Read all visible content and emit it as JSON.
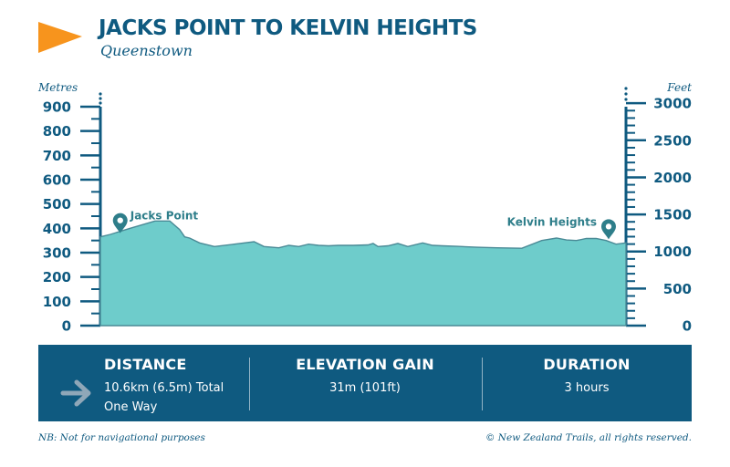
{
  "header": {
    "title": "JACKS POINT TO KELVIN HEIGHTS",
    "subtitle": "Queenstown"
  },
  "colors": {
    "navy": "#0f5a80",
    "fill": "#6ecccb",
    "outline": "#4a8a96",
    "flag": "#f7941d",
    "arrow": "#8fa7b8"
  },
  "chart_data": {
    "type": "area",
    "left_axis": {
      "label": "Metres",
      "ticks": [
        0,
        100,
        200,
        300,
        400,
        500,
        600,
        700,
        800,
        900
      ],
      "range": [
        0,
        900
      ]
    },
    "right_axis": {
      "label": "Feet",
      "ticks": [
        0,
        500,
        1000,
        1500,
        2000,
        2500,
        3000
      ],
      "range": [
        0,
        3000
      ]
    },
    "x_range": [
      0,
      10.6
    ],
    "profile": {
      "x": [
        0,
        0.2,
        0.6,
        1.1,
        1.3,
        1.4,
        1.6,
        1.7,
        1.8,
        2.0,
        2.3,
        2.7,
        3.1,
        3.3,
        3.6,
        3.8,
        4.0,
        4.2,
        4.4,
        4.6,
        4.8,
        5.1,
        5.4,
        5.5,
        5.6,
        5.8,
        6.0,
        6.2,
        6.5,
        6.7,
        6.9,
        7.2,
        7.6,
        8.0,
        8.5,
        8.9,
        9.2,
        9.4,
        9.6,
        9.8,
        10.0,
        10.2,
        10.4,
        10.6
      ],
      "y": [
        365,
        375,
        400,
        430,
        430,
        430,
        395,
        365,
        360,
        340,
        325,
        335,
        345,
        325,
        320,
        330,
        325,
        335,
        330,
        328,
        330,
        330,
        332,
        338,
        325,
        328,
        338,
        325,
        340,
        330,
        328,
        326,
        322,
        320,
        318,
        350,
        360,
        352,
        350,
        358,
        358,
        350,
        335,
        340
      ]
    },
    "annotations": [
      {
        "label": "Jacks Point",
        "x": 0.4,
        "y": 380
      },
      {
        "label": "Kelvin Heights",
        "x": 10.25,
        "y": 355
      }
    ]
  },
  "stats": {
    "distance": {
      "title": "DISTANCE",
      "line1": "10.6km (6.5m) Total",
      "line2": "One Way",
      "icon": "arrow-right-icon"
    },
    "elevation": {
      "title": "ELEVATION GAIN",
      "value": "31m (101ft)"
    },
    "duration": {
      "title": "DURATION",
      "value": "3 hours"
    }
  },
  "footer": {
    "note": "NB: Not for navigational purposes",
    "copyright": "© New Zealand Trails, all rights reserved."
  }
}
